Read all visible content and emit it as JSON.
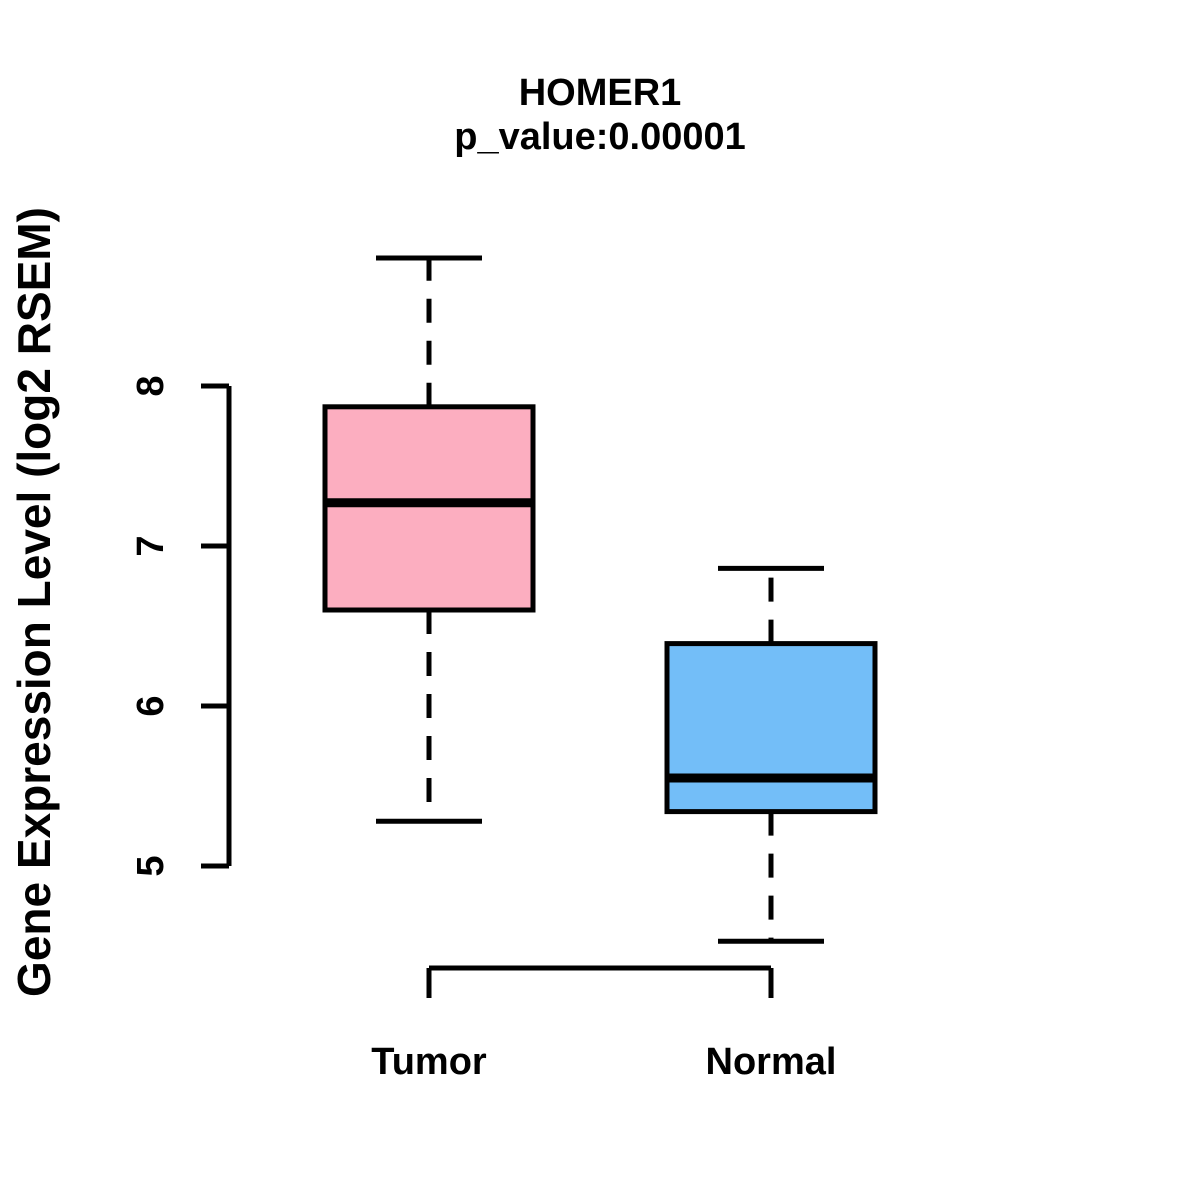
{
  "chart_data": {
    "type": "boxplot",
    "title": "HOMER1",
    "subtitle": "p_value:0.00001",
    "ylabel": "Gene Expression Level (log2 RSEM)",
    "xlabel": "",
    "categories": [
      "Tumor",
      "Normal"
    ],
    "yticks": [
      8,
      7,
      6,
      5
    ],
    "ylim": [
      4.3,
      9.0
    ],
    "grid": false,
    "legend": "none",
    "line_color": "#000000",
    "background_color": "#ffffff",
    "groups": [
      {
        "name": "Tumor",
        "fill_color": "#FCAEC0",
        "whisker_low": 5.28,
        "q1": 6.6,
        "median": 7.27,
        "q3": 7.87,
        "whisker_high": 8.8
      },
      {
        "name": "Normal",
        "fill_color": "#73BEF8",
        "whisker_low": 4.53,
        "q1": 5.34,
        "median": 5.55,
        "q3": 6.39,
        "whisker_high": 6.86
      }
    ]
  }
}
